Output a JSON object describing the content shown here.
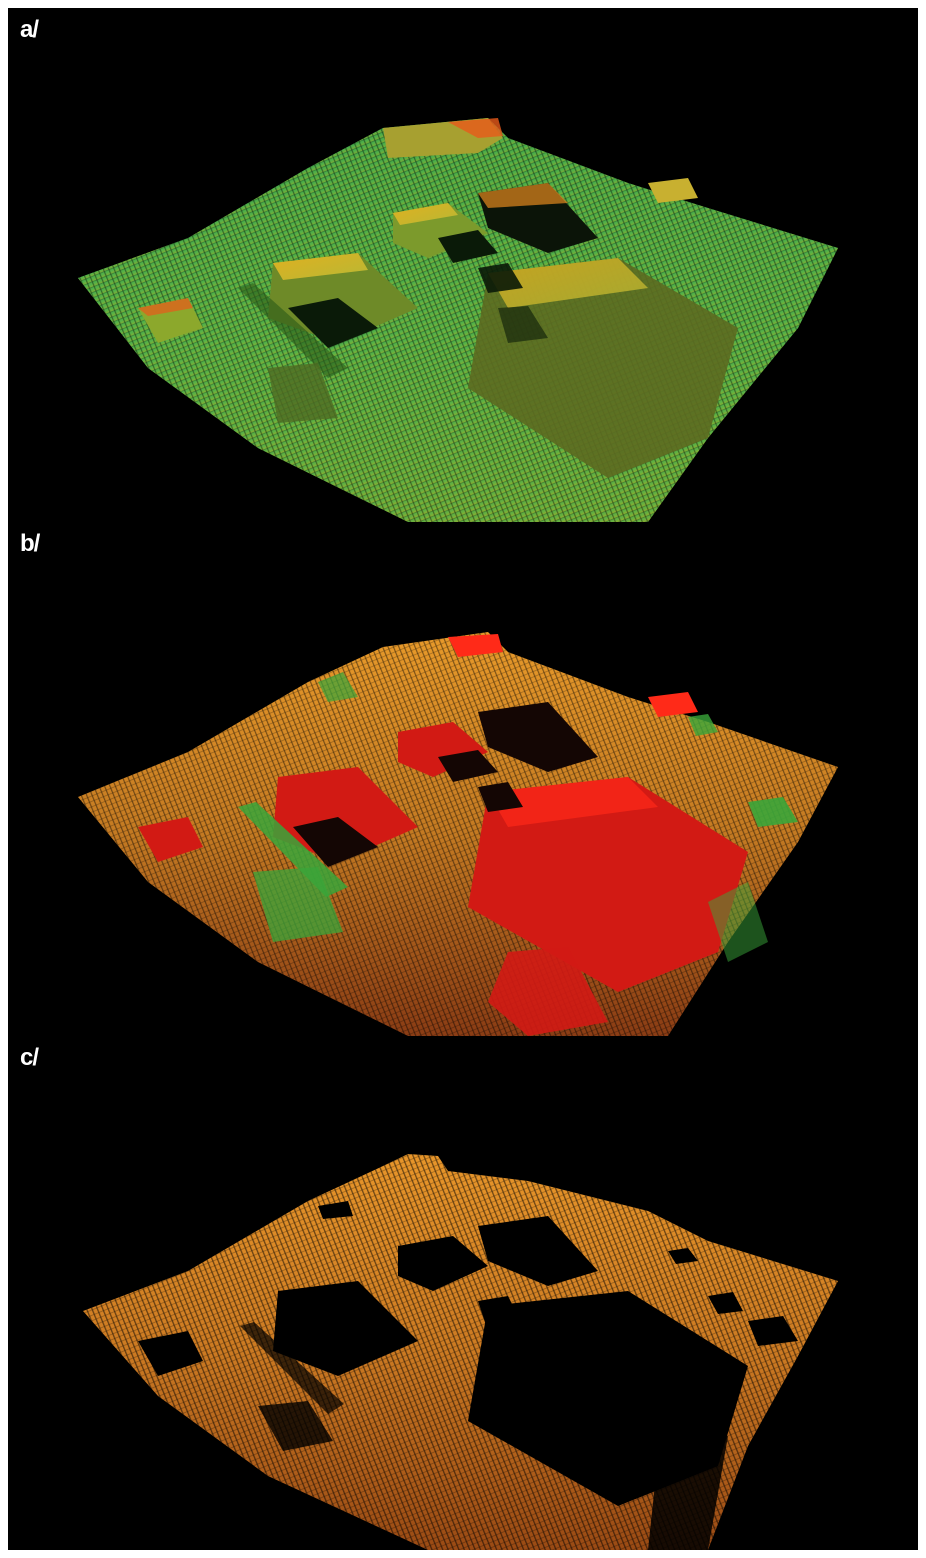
{
  "panels": [
    {
      "id": "a",
      "label": "a/",
      "palette": {
        "ground_far": "#3fa84a",
        "ground_near": "#8fae2e",
        "ground_mid": "#5cb648",
        "roof": "#b8b834",
        "roof_edge": "#e0b020",
        "highlight": "#e85a1a",
        "shadow": "#0a1a08"
      }
    },
    {
      "id": "b",
      "label": "b/",
      "palette": {
        "ground_far": "#e89a2a",
        "ground_near": "#8a3c14",
        "ground_mid": "#c47a22",
        "roof": "#d21a14",
        "roof_edge": "#ff2a18",
        "vegetation": "#3aa63a",
        "shadow": "#140604"
      }
    },
    {
      "id": "c",
      "label": "c/",
      "palette": {
        "ground_far": "#e8962a",
        "ground_near": "#9a4a14",
        "ground_mid": "#cc7a22",
        "hole": "#000000"
      }
    }
  ]
}
